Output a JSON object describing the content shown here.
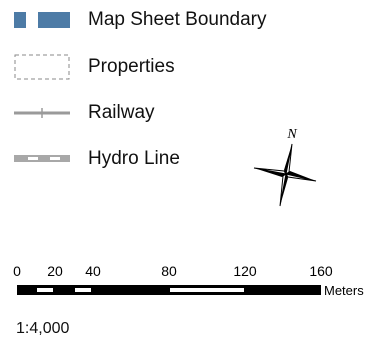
{
  "legend": {
    "items": [
      {
        "label": "Map Sheet Boundary",
        "icon": "map-sheet-boundary-symbol"
      },
      {
        "label": "Properties",
        "icon": "properties-symbol"
      },
      {
        "label": "Railway",
        "icon": "railway-symbol"
      },
      {
        "label": "Hydro Line",
        "icon": "hydro-line-symbol"
      }
    ]
  },
  "north_arrow": {
    "label": "N"
  },
  "scale_bar": {
    "ticks": [
      "0",
      "20",
      "40",
      "80",
      "120",
      "160"
    ],
    "units": "Meters"
  },
  "scale_ratio": "1:4,000",
  "colors": {
    "boundary_fill": "#4d7ba6",
    "properties_stroke": "#8a8a8a",
    "railway": "#9a9a9a",
    "hydro_line": "#a8a8a8",
    "scale_bar": "#000000"
  }
}
